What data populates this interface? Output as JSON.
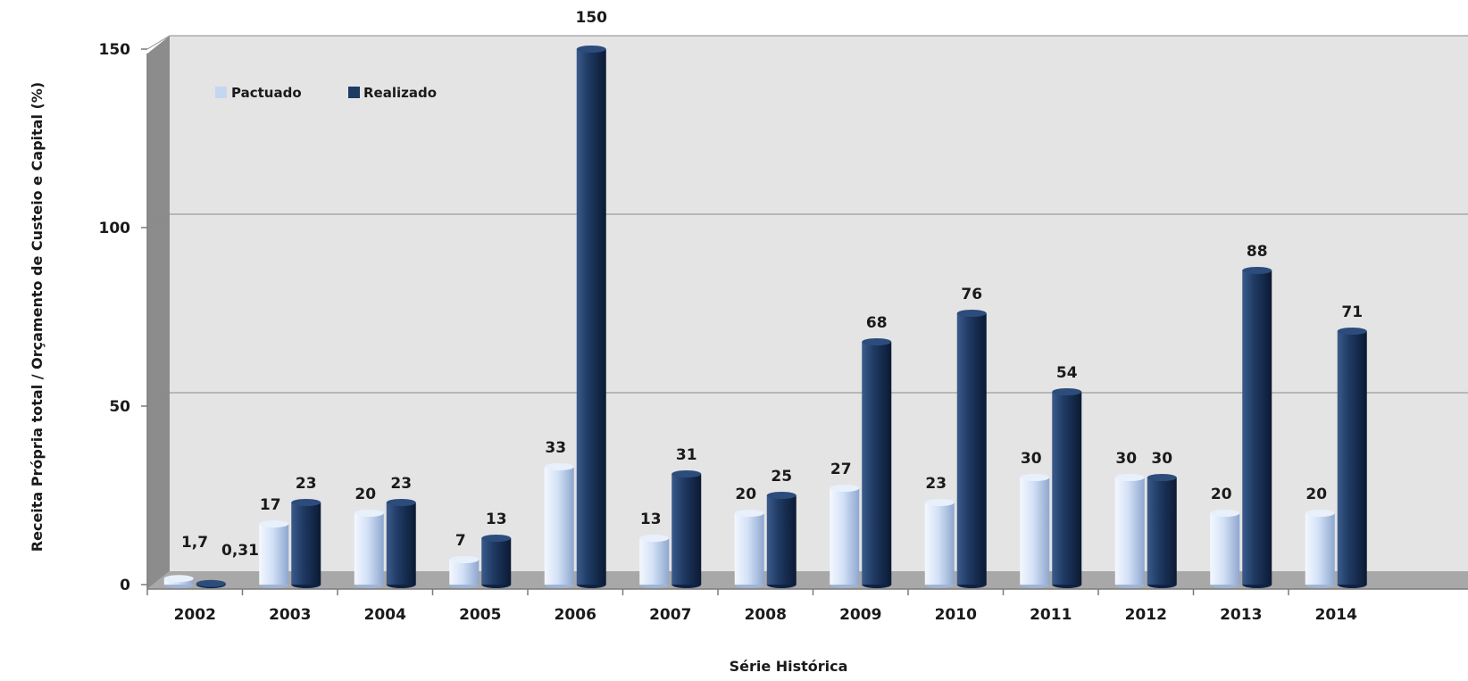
{
  "chart_data": {
    "type": "bar",
    "title": "",
    "xlabel": "Série Histórica",
    "ylabel": "Receita Própria total / Orçamento de Custeio e Capital (%)",
    "ylim": [
      0,
      150
    ],
    "yticks": [
      "0",
      "50",
      "100",
      "150"
    ],
    "grid": true,
    "legend_position": "top-left",
    "categories": [
      "2002",
      "2003",
      "2004",
      "2005",
      "2006",
      "2007",
      "2008",
      "2009",
      "2010",
      "2011",
      "2012",
      "2013",
      "2014"
    ],
    "series": [
      {
        "name": "Pactuado",
        "color": "#c5d6f0",
        "values": [
          1.7,
          17,
          20,
          7,
          33,
          13,
          20,
          27,
          23,
          30,
          30,
          20,
          20
        ],
        "labels": [
          "1,7",
          "17",
          "20",
          "7",
          "33",
          "13",
          "20",
          "27",
          "23",
          "30",
          "30",
          "20",
          "20"
        ]
      },
      {
        "name": "Realizado",
        "color": "#1f3a63",
        "values": [
          0.31,
          23,
          23,
          13,
          150,
          31,
          25,
          68,
          76,
          54,
          30,
          88,
          71
        ],
        "labels": [
          "0,31",
          "23",
          "23",
          "13",
          "150",
          "31",
          "25",
          "68",
          "76",
          "54",
          "30",
          "88",
          "71"
        ]
      }
    ]
  }
}
